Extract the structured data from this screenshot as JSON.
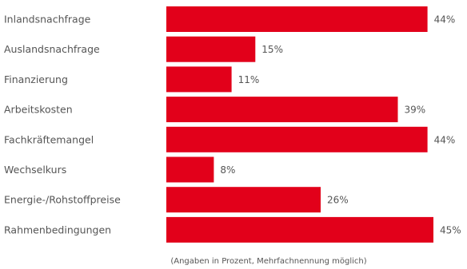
{
  "chart_data": {
    "type": "bar",
    "orientation": "horizontal",
    "categories": [
      "Inlandsnachfrage",
      "Auslandsnachfrage",
      "Finanzierung",
      "Arbeitskosten",
      "Fachkräftemangel",
      "Wechselkurs",
      "Energie-/Rohstoffpreise",
      "Rahmenbedingungen"
    ],
    "values": [
      44,
      15,
      11,
      39,
      44,
      8,
      26,
      45
    ],
    "value_labels": [
      "44%",
      "15%",
      "11%",
      "39%",
      "44%",
      "8%",
      "26%",
      "45%"
    ],
    "unit": "%",
    "xlim": [
      0,
      45
    ],
    "grid": false,
    "bar_color": "#e2001a",
    "note": "(Angaben in Prozent, Mehrfachnennung möglich)"
  }
}
